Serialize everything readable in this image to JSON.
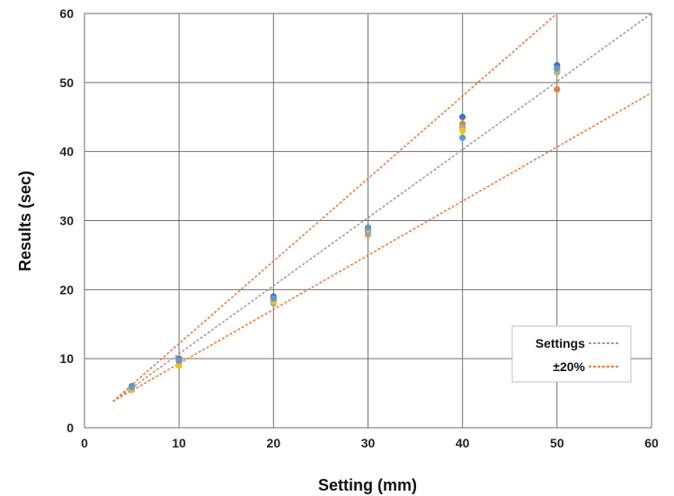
{
  "chart_data": {
    "type": "scatter",
    "xlabel": "Setting (mm)",
    "ylabel": "Results (sec)",
    "xlim": [
      0,
      60
    ],
    "ylim": [
      0,
      60
    ],
    "xticks": [
      0,
      10,
      20,
      30,
      40,
      50,
      60
    ],
    "yticks": [
      0,
      10,
      20,
      30,
      40,
      50,
      60
    ],
    "grid": true,
    "legend_position": "bottom-right",
    "legend": [
      {
        "label": "Settings",
        "color": "#9e9e9e",
        "style": "dotted"
      },
      {
        "label": "±20%",
        "color": "#ed7d31",
        "style": "dotted"
      }
    ],
    "reference_lines": [
      {
        "name": "Settings",
        "x": [
          3,
          60
        ],
        "y": [
          3.8,
          60
        ],
        "color": "#9e9e9e"
      },
      {
        "name": "+20%",
        "x": [
          3,
          50
        ],
        "y": [
          3.8,
          60
        ],
        "color": "#ed7d31"
      },
      {
        "name": "-20%",
        "x": [
          3,
          60
        ],
        "y": [
          3.8,
          48.5
        ],
        "color": "#ed7d31"
      }
    ],
    "series": [
      {
        "color": "#4472c4",
        "x": [
          5,
          10,
          20,
          30,
          40,
          50
        ],
        "y": [
          6,
          10,
          19,
          28.5,
          45,
          52.5
        ]
      },
      {
        "color": "#ed7d31",
        "x": [
          5,
          10,
          20,
          30,
          40,
          50
        ],
        "y": [
          5.8,
          9.8,
          18.5,
          28,
          44,
          49
        ]
      },
      {
        "color": "#a5a5a5",
        "x": [
          5,
          10,
          20,
          30,
          40,
          50
        ],
        "y": [
          5.5,
          9.5,
          18,
          28.2,
          43.5,
          51.5
        ]
      },
      {
        "color": "#ffc000",
        "x": [
          5,
          10,
          20,
          30,
          40,
          50
        ],
        "y": [
          5.7,
          9,
          18.3,
          28.8,
          43,
          51.8
        ]
      },
      {
        "color": "#5b9bd5",
        "x": [
          5,
          10,
          20,
          30,
          40,
          50
        ],
        "y": [
          5.9,
          9.7,
          18.7,
          29,
          42,
          52
        ]
      }
    ]
  }
}
